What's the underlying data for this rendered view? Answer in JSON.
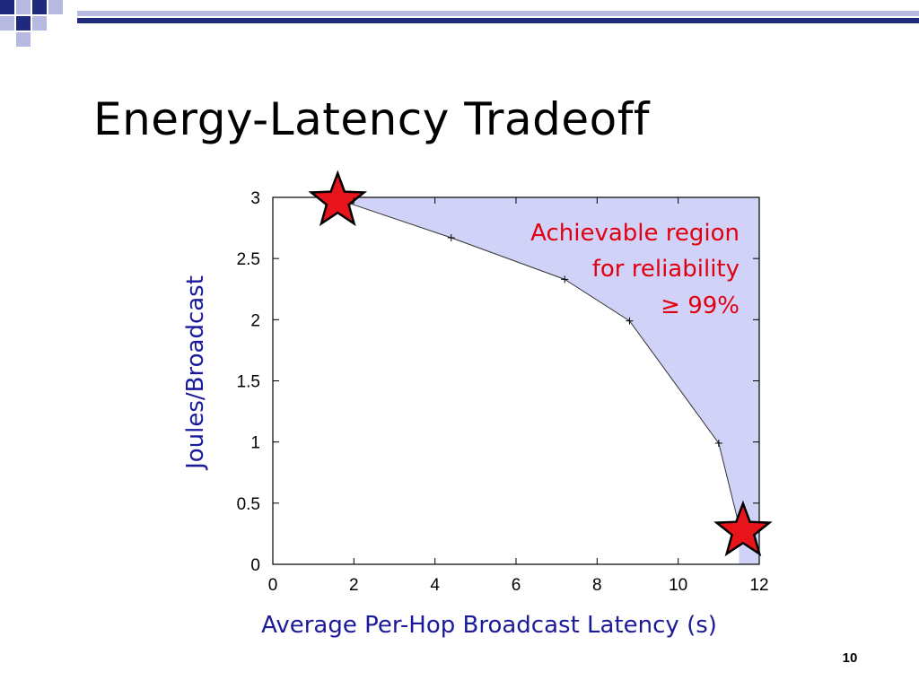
{
  "slide": {
    "title": "Energy-Latency Tradeoff",
    "page_number": "10"
  },
  "colors": {
    "decor_dark": "#1f2a7c",
    "decor_light": "#b7b9e0",
    "region_fill": "#d0d2f8",
    "annotation": "#e0000f",
    "axis_labels": "#1a1a9a",
    "star_fill": "#e8141c"
  },
  "chart_data": {
    "type": "area",
    "xlabel": "Average Per-Hop Broadcast Latency (s)",
    "ylabel": "Joules/Broadcast",
    "xlim": [
      0,
      12
    ],
    "ylim": [
      0,
      3
    ],
    "xticks": [
      "0",
      "2",
      "4",
      "6",
      "8",
      "10",
      "12"
    ],
    "yticks": [
      "0",
      "0.5",
      "1",
      "1.5",
      "2",
      "2.5",
      "3"
    ],
    "grid": false,
    "frontier": {
      "x": [
        1.9,
        4.4,
        7.2,
        8.8,
        11.0,
        11.5
      ],
      "y": [
        2.95,
        2.67,
        2.33,
        1.99,
        0.99,
        0.32
      ]
    },
    "optimal_points": [
      {
        "x": 1.6,
        "y": 2.97
      },
      {
        "x": 11.6,
        "y": 0.27
      }
    ],
    "annotation": {
      "lines": [
        "Achievable region",
        "for reliability",
        "≥ 99%"
      ]
    }
  }
}
